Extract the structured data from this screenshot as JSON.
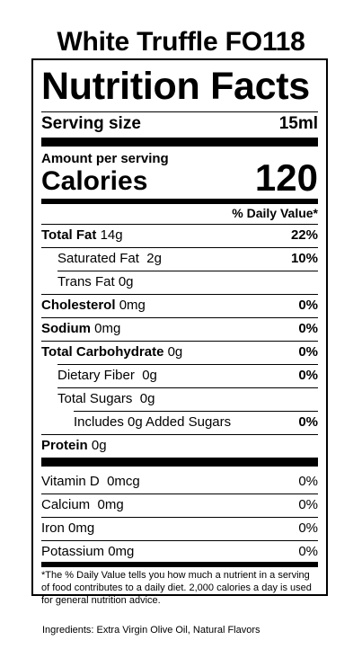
{
  "product_title": "White Truffle FO118",
  "panel": {
    "heading": "Nutrition Facts",
    "serving_size_label": "Serving size",
    "serving_size_value": "15ml",
    "amount_per_serving": "Amount per serving",
    "calories_label": "Calories",
    "calories_value": "120",
    "daily_value_header": "% Daily Value*",
    "nutrients": [
      {
        "name": "Total Fat",
        "amount": "14g",
        "dv": "22%"
      },
      {
        "name": "Saturated Fat",
        "amount": "2g",
        "dv": "10%"
      },
      {
        "name": "Trans Fat",
        "amount": "0g",
        "dv": ""
      },
      {
        "name": "Cholesterol",
        "amount": "0mg",
        "dv": "0%"
      },
      {
        "name": "Sodium",
        "amount": "0mg",
        "dv": "0%"
      },
      {
        "name": "Total Carbohydrate",
        "amount": "0g",
        "dv": "0%"
      },
      {
        "name": "Dietary Fiber",
        "amount": "0g",
        "dv": "0%"
      },
      {
        "name": "Total Sugars",
        "amount": "0g",
        "dv": ""
      },
      {
        "name": "Includes 0g Added Sugars",
        "amount": "",
        "dv": "0%"
      },
      {
        "name": "Protein",
        "amount": "0g",
        "dv": ""
      }
    ],
    "vitamins": [
      {
        "name": "Vitamin D",
        "amount": "0mcg",
        "dv": "0%"
      },
      {
        "name": "Calcium",
        "amount": "0mg",
        "dv": "0%"
      },
      {
        "name": "Iron",
        "amount": "0mg",
        "dv": "0%"
      },
      {
        "name": "Potassium",
        "amount": "0mg",
        "dv": "0%"
      }
    ],
    "footnote": "*The % Daily Value tells you how much a nutrient in a serving of food contributes to a daily diet. 2,000 calories a day is used for general nutrition advice."
  },
  "ingredients": "Ingredients: Extra Virgin Olive Oil, Natural Flavors"
}
